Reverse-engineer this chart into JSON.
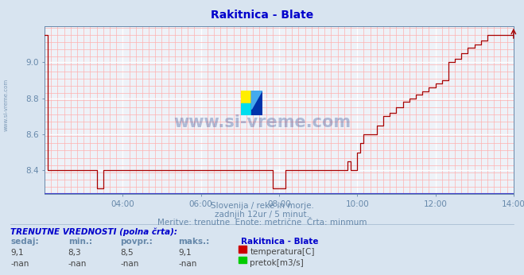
{
  "title": "Rakitnica - Blate",
  "title_color": "#0000cc",
  "bg_color": "#d8e4f0",
  "plot_bg_color": "#eef2f8",
  "grid_color_major": "#ffffff",
  "grid_color_minor": "#ffb0b0",
  "tick_color": "#6688aa",
  "line_color": "#aa0000",
  "xmin": 0,
  "xmax": 144,
  "ymin": 8.27,
  "ymax": 9.2,
  "yticks": [
    8.4,
    8.6,
    8.8,
    9.0
  ],
  "xtick_labels": [
    "04:00",
    "06:00",
    "08:00",
    "10:00",
    "12:00",
    "14:00"
  ],
  "xtick_positions": [
    24,
    48,
    72,
    96,
    120,
    144
  ],
  "subtitle1": "Slovenija / reke in morje.",
  "subtitle2": "zadnjih 12ur / 5 minut.",
  "subtitle3": "Meritve: trenutne  Enote: metrične  Črta: minmum",
  "footer_title": "TRENUTNE VREDNOSTI (polna črta):",
  "col_headers": [
    "sedaj:",
    "min.:",
    "povpr.:",
    "maks.:"
  ],
  "row1_values": [
    "9,1",
    "8,3",
    "8,5",
    "9,1"
  ],
  "row2_values": [
    "-nan",
    "-nan",
    "-nan",
    "-nan"
  ],
  "legend_label1": "temperatura[C]",
  "legend_label2": "pretok[m3/s]",
  "legend_color1": "#cc0000",
  "legend_color2": "#00cc00",
  "station_label": "Rakitnica - Blate",
  "watermark": "www.si-vreme.com",
  "watermark_color": "#1a3a8a",
  "watermark_alpha": 0.3,
  "side_text": "www.si-vreme.com",
  "side_text_color": "#6688aa"
}
